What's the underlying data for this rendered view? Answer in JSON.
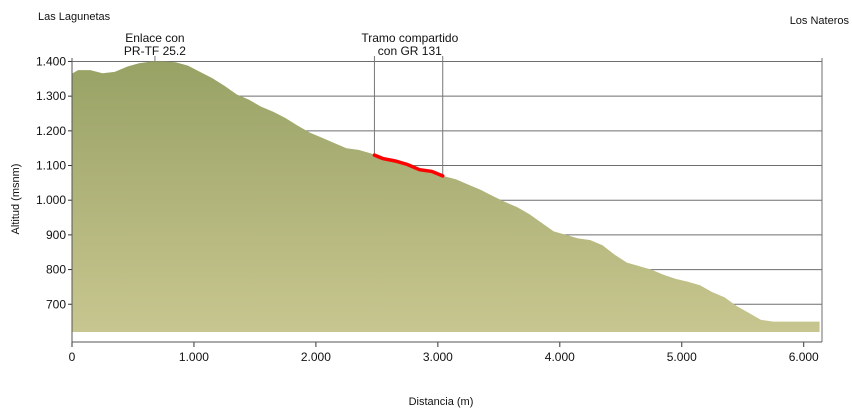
{
  "chart_data": {
    "type": "area",
    "xlabel": "Distancia (m)",
    "ylabel": "Altitud (msnm)",
    "xlim": [
      0,
      6150
    ],
    "ylim": [
      620,
      1410
    ],
    "x_ticks": [
      {
        "v": 0,
        "label": "0"
      },
      {
        "v": 1000,
        "label": "1.000"
      },
      {
        "v": 2000,
        "label": "2.000"
      },
      {
        "v": 3000,
        "label": "3.000"
      },
      {
        "v": 4000,
        "label": "4.000"
      },
      {
        "v": 5000,
        "label": "5.000"
      },
      {
        "v": 6000,
        "label": "6.000"
      }
    ],
    "y_ticks": [
      {
        "v": 700,
        "label": "700"
      },
      {
        "v": 800,
        "label": "800"
      },
      {
        "v": 900,
        "label": "900"
      },
      {
        "v": 1000,
        "label": "1.000"
      },
      {
        "v": 1100,
        "label": "1.100"
      },
      {
        "v": 1200,
        "label": "1.200"
      },
      {
        "v": 1300,
        "label": "1.300"
      },
      {
        "v": 1400,
        "label": "1.400"
      }
    ],
    "grid": true,
    "endpoints": {
      "start": "Las Lagunetas",
      "end": "Los Nateros"
    },
    "annotations": [
      {
        "lines": [
          "Enlace con",
          "PR-TF 25.2"
        ],
        "x": 680
      },
      {
        "lines": [
          "Tramo compartido",
          "con GR 131"
        ],
        "x": 2770
      }
    ],
    "highlight": {
      "x_start": 2480,
      "x_end": 3040,
      "color": "#ff0000"
    },
    "fill_color_top": "#98a265",
    "fill_color_bottom": "#c8c690",
    "series": [
      {
        "values": [
          [
            0,
            1365
          ],
          [
            50,
            1375
          ],
          [
            150,
            1375
          ],
          [
            250,
            1366
          ],
          [
            350,
            1370
          ],
          [
            450,
            1385
          ],
          [
            550,
            1395
          ],
          [
            650,
            1400
          ],
          [
            750,
            1400
          ],
          [
            850,
            1398
          ],
          [
            950,
            1388
          ],
          [
            1050,
            1370
          ],
          [
            1150,
            1352
          ],
          [
            1250,
            1330
          ],
          [
            1350,
            1305
          ],
          [
            1450,
            1290
          ],
          [
            1550,
            1270
          ],
          [
            1650,
            1255
          ],
          [
            1750,
            1237
          ],
          [
            1850,
            1215
          ],
          [
            1950,
            1195
          ],
          [
            2050,
            1180
          ],
          [
            2150,
            1165
          ],
          [
            2250,
            1150
          ],
          [
            2350,
            1145
          ],
          [
            2450,
            1135
          ],
          [
            2480,
            1130
          ],
          [
            2550,
            1120
          ],
          [
            2650,
            1113
          ],
          [
            2750,
            1103
          ],
          [
            2850,
            1088
          ],
          [
            2950,
            1083
          ],
          [
            3040,
            1070
          ],
          [
            3150,
            1060
          ],
          [
            3250,
            1045
          ],
          [
            3350,
            1030
          ],
          [
            3450,
            1012
          ],
          [
            3550,
            995
          ],
          [
            3650,
            980
          ],
          [
            3750,
            960
          ],
          [
            3850,
            935
          ],
          [
            3950,
            910
          ],
          [
            4050,
            900
          ],
          [
            4150,
            890
          ],
          [
            4250,
            885
          ],
          [
            4350,
            870
          ],
          [
            4450,
            843
          ],
          [
            4550,
            820
          ],
          [
            4650,
            810
          ],
          [
            4750,
            800
          ],
          [
            4850,
            785
          ],
          [
            4950,
            773
          ],
          [
            5050,
            765
          ],
          [
            5150,
            755
          ],
          [
            5250,
            735
          ],
          [
            5350,
            720
          ],
          [
            5450,
            695
          ],
          [
            5550,
            675
          ],
          [
            5650,
            655
          ],
          [
            5750,
            650
          ],
          [
            5850,
            650
          ],
          [
            5950,
            650
          ],
          [
            6050,
            650
          ],
          [
            6130,
            650
          ]
        ]
      }
    ]
  }
}
